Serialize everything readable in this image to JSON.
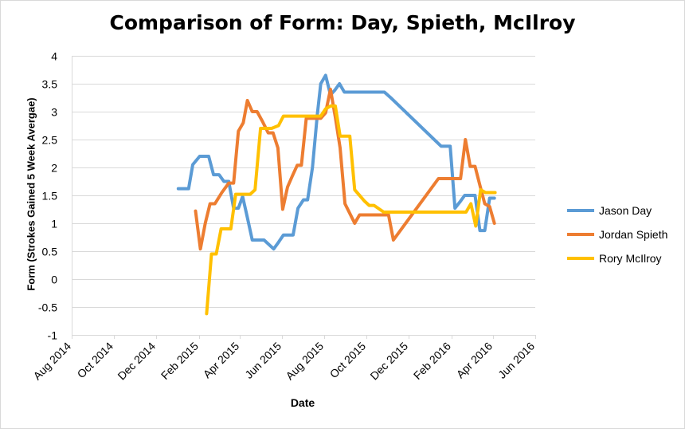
{
  "chart_data": {
    "type": "line",
    "title": "Comparison of Form: Day, Spieth, McIlroy",
    "xlabel": "Date",
    "ylabel": "Form (Strokes Gained 5 Week Avergae)",
    "ylim": [
      -1,
      4
    ],
    "yticks": [
      -1,
      -0.5,
      0,
      0.5,
      1,
      1.5,
      2,
      2.5,
      3,
      3.5,
      4
    ],
    "ytick_labels": [
      "-1",
      "-0.5",
      "0",
      "0.5",
      "1",
      "1.5",
      "2",
      "2.5",
      "3",
      "3.5",
      "4"
    ],
    "xlim": [
      "2014-08-01",
      "2016-06-01"
    ],
    "xticks": [
      "2014-08-01",
      "2014-10-01",
      "2014-12-01",
      "2015-02-01",
      "2015-04-01",
      "2015-06-01",
      "2015-08-01",
      "2015-10-01",
      "2015-12-01",
      "2016-02-01",
      "2016-04-01",
      "2016-06-01"
    ],
    "xtick_labels": [
      "Aug 2014",
      "Oct 2014",
      "Dec 2014",
      "Feb 2015",
      "Apr 2015",
      "Jun 2015",
      "Aug 2015",
      "Oct 2015",
      "Dec 2015",
      "Feb 2016",
      "Apr 2016",
      "Jun 2016"
    ],
    "grid": true,
    "legend_position": "right",
    "series": [
      {
        "name": "Jason Day",
        "color": "#5b9bd5",
        "x": [
          "2015-01-02",
          "2015-01-17",
          "2015-01-23",
          "2015-02-02",
          "2015-02-15",
          "2015-02-22",
          "2015-03-02",
          "2015-03-09",
          "2015-03-16",
          "2015-03-23",
          "2015-03-30",
          "2015-04-05",
          "2015-04-12",
          "2015-04-19",
          "2015-04-28",
          "2015-05-06",
          "2015-05-20",
          "2015-05-27",
          "2015-06-03",
          "2015-06-11",
          "2015-06-17",
          "2015-06-24",
          "2015-07-02",
          "2015-07-08",
          "2015-07-15",
          "2015-07-22",
          "2015-07-27",
          "2015-08-03",
          "2015-08-10",
          "2015-08-16",
          "2015-08-23",
          "2015-08-30",
          "2015-09-07",
          "2015-09-13",
          "2015-09-20",
          "2015-09-27",
          "2015-10-05",
          "2015-10-27",
          "2015-11-05",
          "2016-01-17",
          "2016-01-30",
          "2016-02-06",
          "2016-02-13",
          "2016-02-20",
          "2016-02-27",
          "2016-03-06",
          "2016-03-13",
          "2016-03-20",
          "2016-03-27",
          "2016-04-03"
        ],
        "values": [
          1.62,
          1.62,
          2.05,
          2.2,
          2.2,
          1.87,
          1.87,
          1.75,
          1.75,
          1.27,
          1.27,
          1.48,
          1.1,
          0.7,
          0.7,
          0.7,
          0.54,
          0.66,
          0.79,
          0.79,
          0.79,
          1.27,
          1.42,
          1.42,
          2.0,
          2.95,
          3.5,
          3.65,
          3.3,
          3.38,
          3.5,
          3.35,
          3.35,
          3.35,
          3.35,
          3.35,
          3.35,
          3.35,
          3.25,
          2.38,
          2.38,
          1.27,
          1.38,
          1.5,
          1.5,
          1.5,
          0.87,
          0.87,
          1.45,
          1.45
        ]
      },
      {
        "name": "Jordan Spieth",
        "color": "#ed7d31",
        "x": [
          "2015-01-27",
          "2015-02-03",
          "2015-02-10",
          "2015-02-17",
          "2015-02-24",
          "2015-03-06",
          "2015-03-16",
          "2015-03-23",
          "2015-03-30",
          "2015-04-06",
          "2015-04-12",
          "2015-04-19",
          "2015-04-26",
          "2015-05-04",
          "2015-05-12",
          "2015-05-19",
          "2015-05-26",
          "2015-06-02",
          "2015-06-09",
          "2015-06-16",
          "2015-06-23",
          "2015-06-29",
          "2015-07-06",
          "2015-07-13",
          "2015-07-20",
          "2015-07-27",
          "2015-08-03",
          "2015-08-10",
          "2015-08-17",
          "2015-08-24",
          "2015-08-31",
          "2015-09-08",
          "2015-09-14",
          "2015-09-21",
          "2015-09-28",
          "2015-10-05",
          "2015-10-12",
          "2015-11-02",
          "2015-11-09",
          "2016-01-13",
          "2016-01-23",
          "2016-02-01",
          "2016-02-07",
          "2016-02-14",
          "2016-02-21",
          "2016-02-28",
          "2016-03-06",
          "2016-03-13",
          "2016-03-20",
          "2016-03-27",
          "2016-04-03"
        ],
        "values": [
          1.22,
          0.54,
          1.0,
          1.35,
          1.35,
          1.55,
          1.72,
          1.72,
          2.65,
          2.8,
          3.2,
          3.0,
          3.0,
          2.82,
          2.62,
          2.62,
          2.35,
          1.25,
          1.65,
          1.85,
          2.04,
          2.04,
          2.88,
          2.88,
          2.88,
          2.88,
          2.98,
          3.4,
          2.9,
          2.35,
          1.35,
          1.15,
          1.0,
          1.15,
          1.15,
          1.15,
          1.15,
          1.15,
          0.7,
          1.8,
          1.8,
          1.8,
          1.8,
          1.8,
          2.5,
          2.02,
          2.02,
          1.68,
          1.35,
          1.3,
          1.0
        ]
      },
      {
        "name": "Rory McIlroy",
        "color": "#ffc000",
        "x": [
          "2015-02-12",
          "2015-02-19",
          "2015-02-26",
          "2015-03-05",
          "2015-03-13",
          "2015-03-19",
          "2015-03-26",
          "2015-04-02",
          "2015-04-16",
          "2015-04-23",
          "2015-05-01",
          "2015-05-08",
          "2015-05-17",
          "2015-05-27",
          "2015-06-03",
          "2015-06-17",
          "2015-06-24",
          "2015-07-20",
          "2015-07-27",
          "2015-08-03",
          "2015-08-10",
          "2015-08-17",
          "2015-08-24",
          "2015-09-01",
          "2015-09-07",
          "2015-09-14",
          "2015-09-21",
          "2015-09-28",
          "2015-10-05",
          "2015-10-12",
          "2015-10-26",
          "2015-11-09",
          "2016-01-15",
          "2016-01-30",
          "2016-02-08",
          "2016-02-15",
          "2016-02-22",
          "2016-02-29",
          "2016-03-07",
          "2016-03-14",
          "2016-03-21",
          "2016-04-04"
        ],
        "values": [
          -0.62,
          0.45,
          0.45,
          0.9,
          0.9,
          0.9,
          1.52,
          1.52,
          1.52,
          1.6,
          2.7,
          2.7,
          2.7,
          2.75,
          2.92,
          2.92,
          2.92,
          2.92,
          2.92,
          3.05,
          3.1,
          3.1,
          2.56,
          2.56,
          2.56,
          1.6,
          1.5,
          1.4,
          1.32,
          1.32,
          1.2,
          1.2,
          1.2,
          1.2,
          1.2,
          1.2,
          1.2,
          1.35,
          0.95,
          1.6,
          1.55,
          1.55
        ]
      }
    ]
  }
}
